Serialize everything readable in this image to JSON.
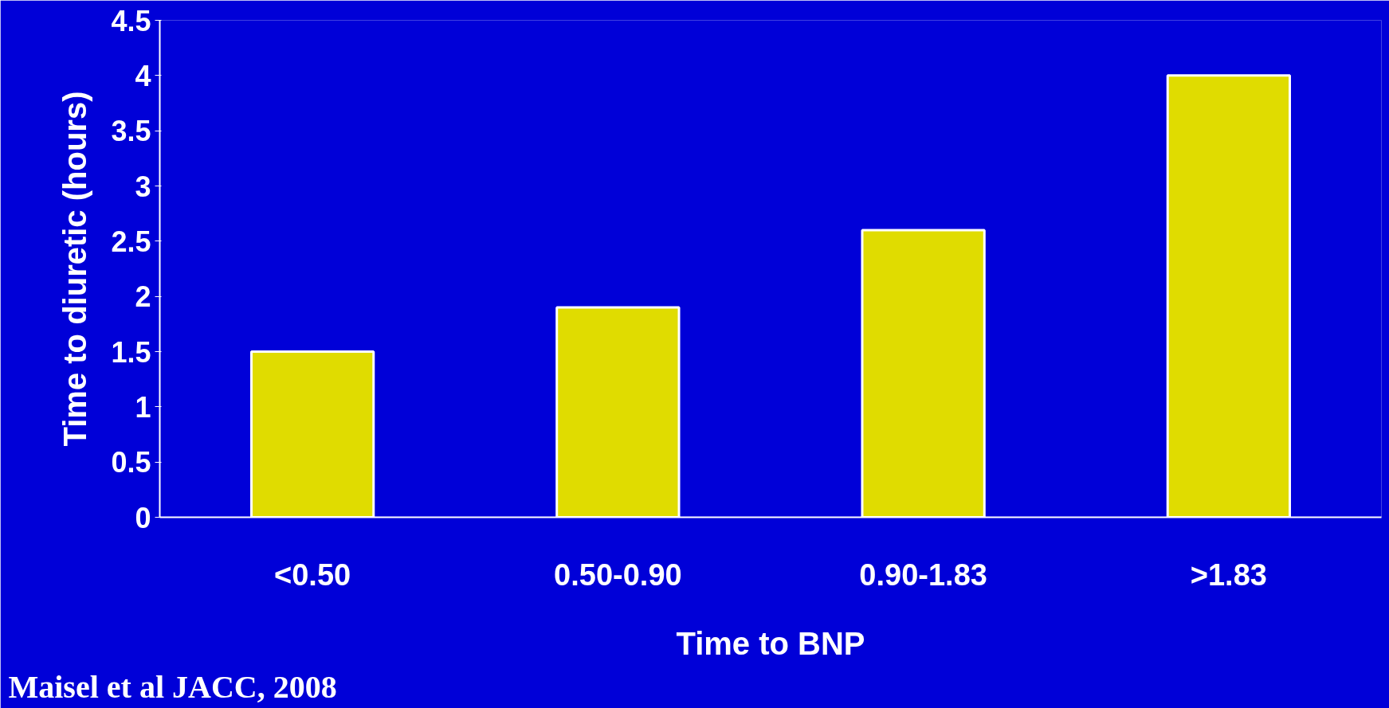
{
  "chart_data": {
    "type": "bar",
    "xlabel": "Time to BNP",
    "ylabel": "Time to diuretic (hours)",
    "categories": [
      "<0.50",
      "0.50-0.90",
      "0.90-1.83",
      ">1.83"
    ],
    "values": [
      1.5,
      1.9,
      2.6,
      4
    ],
    "color": "#e0dc00",
    "ylim": [
      0,
      4.5
    ],
    "yticks": [
      0,
      0.5,
      1,
      1.5,
      2,
      2.5,
      3,
      3.5,
      4,
      4.5
    ],
    "grid": false,
    "annotations": [
      "Maisel et al JACC, 2008"
    ]
  }
}
